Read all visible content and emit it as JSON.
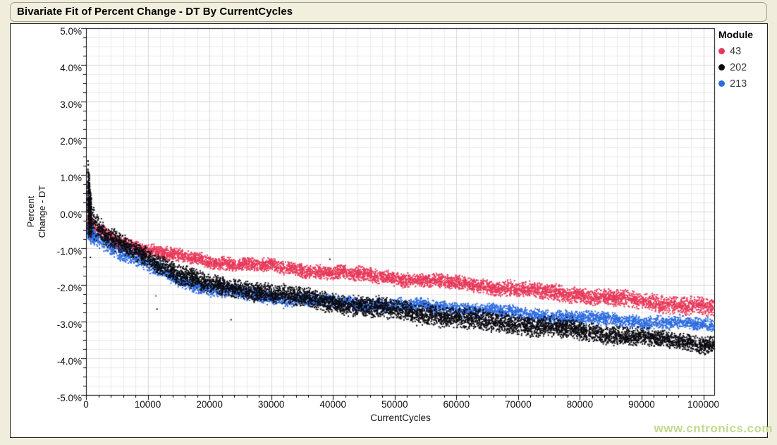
{
  "window": {
    "title": "Bivariate Fit of Percent Change - DT By CurrentCycles"
  },
  "watermark": "www.cntronics.com",
  "legend": {
    "title": "Module"
  },
  "chart_data": {
    "type": "scatter",
    "title": "Bivariate Fit of Percent Change - DT By CurrentCycles",
    "xlabel": "CurrentCycles",
    "ylabel": "Percent Change - DT",
    "ylabel_lines": [
      "Percent",
      "Change - DT"
    ],
    "xlim": [
      0,
      101770
    ],
    "ylim": [
      -5,
      5
    ],
    "x_minor_step": 2000,
    "y_minor_step": 0.25,
    "grid": true,
    "legend_position": "right",
    "x_ticks": [
      {
        "v": 0,
        "label": "0"
      },
      {
        "v": 10000,
        "label": "10000"
      },
      {
        "v": 20000,
        "label": "20000"
      },
      {
        "v": 30000,
        "label": "30000"
      },
      {
        "v": 40000,
        "label": "40000"
      },
      {
        "v": 50000,
        "label": "50000"
      },
      {
        "v": 60000,
        "label": "60000"
      },
      {
        "v": 70000,
        "label": "70000"
      },
      {
        "v": 80000,
        "label": "80000"
      },
      {
        "v": 90000,
        "label": "90000"
      },
      {
        "v": 100000,
        "label": "100000"
      }
    ],
    "y_ticks": [
      {
        "v": 5,
        "label": "5.0%"
      },
      {
        "v": 4,
        "label": "4.0%"
      },
      {
        "v": 3,
        "label": "3.0%"
      },
      {
        "v": 2,
        "label": "2.0%"
      },
      {
        "v": 1,
        "label": "1.0%"
      },
      {
        "v": 0,
        "label": "0.0%"
      },
      {
        "v": -1,
        "label": "-1.0%"
      },
      {
        "v": -2,
        "label": "-2.0%"
      },
      {
        "v": -3,
        "label": "-3.0%"
      },
      {
        "v": -4,
        "label": "-4.0%"
      },
      {
        "v": -5,
        "label": "-5.0%"
      }
    ],
    "colors": {
      "grid_major": "#d7d7d7",
      "grid_minor": "#ebebeb",
      "axis": "#000000",
      "plot_bg": "#ffffff",
      "page_bg": "#f0eddc",
      "watermark": "#c3da8e"
    },
    "marker_px": 2,
    "draw_order": [
      "43",
      "213",
      "202"
    ],
    "series": [
      {
        "name": "43",
        "color": "#e8395a",
        "seed": 101,
        "count": 6200,
        "band": [
          [
            400,
            -0.35,
            0.3
          ],
          [
            2000,
            -0.55,
            0.18
          ],
          [
            5000,
            -0.8,
            0.18
          ],
          [
            10000,
            -1.05,
            0.17
          ],
          [
            15000,
            -1.22,
            0.17
          ],
          [
            20000,
            -1.35,
            0.17
          ],
          [
            30000,
            -1.5,
            0.17
          ],
          [
            40000,
            -1.67,
            0.18
          ],
          [
            50000,
            -1.8,
            0.18
          ],
          [
            60000,
            -1.95,
            0.18
          ],
          [
            70000,
            -2.12,
            0.2
          ],
          [
            80000,
            -2.28,
            0.2
          ],
          [
            90000,
            -2.45,
            0.22
          ],
          [
            101770,
            -2.62,
            0.25
          ]
        ],
        "burst": {
          "x0": 250,
          "x1": 1100,
          "count": 110
        },
        "outliers": []
      },
      {
        "name": "202",
        "color": "#0b0b12",
        "seed": 202,
        "count": 7000,
        "band": [
          [
            400,
            0.35,
            0.95
          ],
          [
            800,
            -0.1,
            0.55
          ],
          [
            2000,
            -0.5,
            0.3
          ],
          [
            5000,
            -0.85,
            0.27
          ],
          [
            10000,
            -1.25,
            0.25
          ],
          [
            15000,
            -1.7,
            0.27
          ],
          [
            20000,
            -2.0,
            0.25
          ],
          [
            30000,
            -2.22,
            0.25
          ],
          [
            40000,
            -2.48,
            0.25
          ],
          [
            50000,
            -2.68,
            0.27
          ],
          [
            60000,
            -2.9,
            0.28
          ],
          [
            70000,
            -3.07,
            0.26
          ],
          [
            80000,
            -3.25,
            0.25
          ],
          [
            90000,
            -3.44,
            0.23
          ],
          [
            101770,
            -3.63,
            0.22
          ]
        ],
        "burst": {
          "x0": 250,
          "x1": 900,
          "count": 350
        },
        "outliers": [
          [
            700,
            -1.25
          ],
          [
            11500,
            -2.66
          ],
          [
            39500,
            -1.3
          ],
          [
            23500,
            -2.95
          ]
        ]
      },
      {
        "name": "213",
        "color": "#2e6ce0",
        "seed": 303,
        "count": 5200,
        "band": [
          [
            500,
            -0.55,
            0.25
          ],
          [
            2000,
            -0.72,
            0.22
          ],
          [
            5000,
            -1.05,
            0.22
          ],
          [
            10000,
            -1.45,
            0.2
          ],
          [
            15000,
            -1.85,
            0.18
          ],
          [
            20000,
            -2.12,
            0.18
          ],
          [
            30000,
            -2.32,
            0.17
          ],
          [
            40000,
            -2.48,
            0.17
          ],
          [
            50000,
            -2.56,
            0.17
          ],
          [
            60000,
            -2.62,
            0.17
          ],
          [
            70000,
            -2.78,
            0.17
          ],
          [
            80000,
            -2.9,
            0.17
          ],
          [
            90000,
            -3.0,
            0.17
          ],
          [
            101770,
            -3.1,
            0.17
          ]
        ],
        "burst": {
          "x0": 250,
          "x1": 1400,
          "count": 90
        },
        "outliers": [
          [
            800,
            -0.88
          ],
          [
            11300,
            -2.3
          ],
          [
            32000,
            -2.64
          ],
          [
            96000,
            -3.45
          ]
        ]
      }
    ]
  }
}
